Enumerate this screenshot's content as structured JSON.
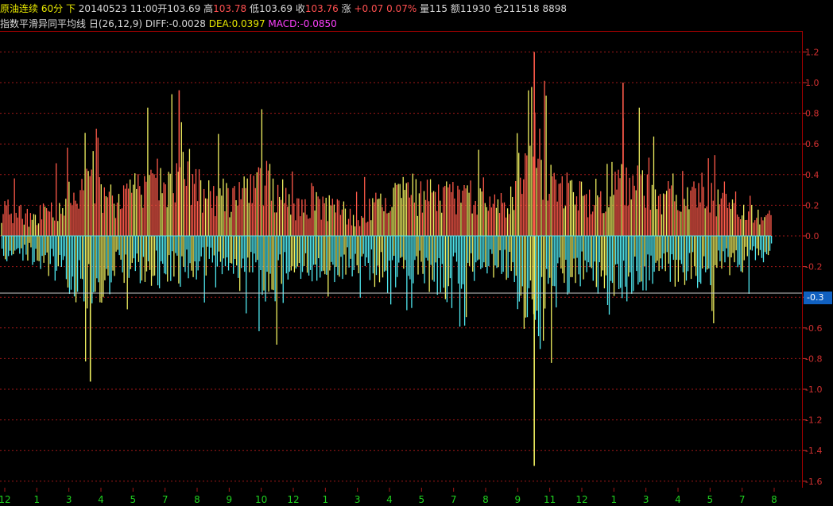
{
  "header": {
    "instrument": "原油连续",
    "period": "60分",
    "direction": "下",
    "datetime": "20140523 11:00",
    "open_label": "开",
    "open": "103.69",
    "high_label": "高",
    "high": "103.78",
    "low_label": "低",
    "low": "103.69",
    "close_label": "收",
    "close": "103.76",
    "change_label": "涨",
    "change": "+0.07",
    "change_pct": "0.07%",
    "volume_label": "量",
    "volume": "115",
    "amount_label": "额",
    "amount": "11930",
    "oi_label": "仓",
    "open_interest": "211518",
    "extra": "8898"
  },
  "indicator": {
    "name": "指数平滑异同平均线",
    "period_marker": "日",
    "params": "(26,12,9)",
    "diff_label": "DIFF:",
    "diff": "-0.0028",
    "dea_label": "DEA:",
    "dea": "0.0397",
    "macd_label": "MACD:",
    "macd": "-0.0850"
  },
  "cursor_value": "-0.3",
  "colors": {
    "positive": "#ff5a4a",
    "negative": "#50e8f0",
    "dif_line": "#f0f060",
    "grid": "#a01818",
    "axis_label": "#d03030",
    "time_label": "#20d020"
  },
  "chart_data": {
    "type": "bar",
    "title": "",
    "ylim": [
      -1.6,
      1.3
    ],
    "yticks": [
      1.2,
      1.0,
      0.8,
      0.6,
      0.4,
      0.2,
      0.0,
      -0.2,
      -0.4,
      -0.6,
      -0.8,
      -1.0,
      -1.2,
      -1.4,
      -1.6
    ],
    "ytick_labels": [
      "1.2",
      "1.0",
      "0.8",
      "0.6",
      "0.4",
      "0.2",
      "0.0",
      "-0.2",
      "-0.4",
      "-0.6",
      "-0.8",
      "-1.0",
      "-1.2",
      "-1.4",
      "-1.6"
    ],
    "x_labels": [
      "12",
      "1",
      "3",
      "4",
      "5",
      "7",
      "8",
      "9",
      "10",
      "12",
      "1",
      "3",
      "4",
      "5",
      "7",
      "8",
      "9",
      "11",
      "12",
      "1",
      "3",
      "4",
      "5",
      "7",
      "8"
    ],
    "grid": true,
    "series": [
      {
        "name": "MACD",
        "values": [
          0.45,
          -0.35,
          0.3,
          -0.3,
          0.5,
          -0.62,
          0.75,
          -0.95,
          0.6,
          -0.55,
          0.82,
          -0.6,
          0.95,
          -0.6,
          0.7,
          -0.45,
          0.6,
          -0.5,
          0.88,
          -0.83,
          0.45,
          -0.55,
          0.5,
          -0.58,
          0.3,
          -0.45,
          0.58,
          -0.7,
          0.7,
          -0.55,
          0.6,
          -0.8,
          0.62,
          -0.55,
          0.45,
          -0.5,
          1.2,
          -1.5,
          0.72,
          -0.7,
          0.6,
          -0.65,
          1.0,
          -0.82,
          0.65,
          -0.6,
          0.78,
          -0.6,
          0.6,
          -0.6,
          0.35,
          -0.45,
          0.32,
          -0.2
        ]
      }
    ]
  }
}
